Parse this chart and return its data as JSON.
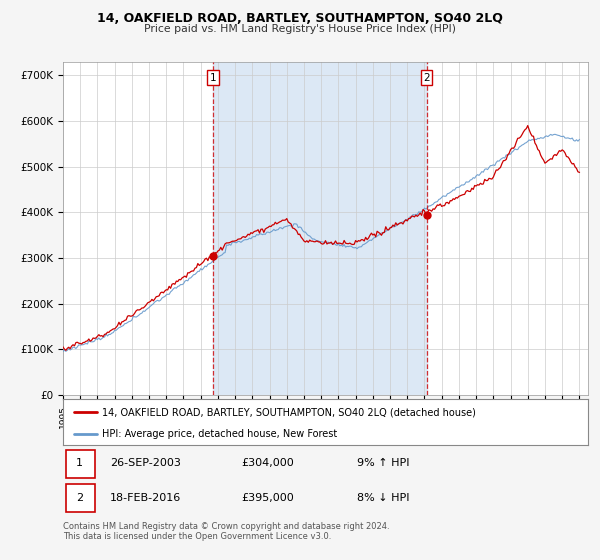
{
  "title": "14, OAKFIELD ROAD, BARTLEY, SOUTHAMPTON, SO40 2LQ",
  "subtitle": "Price paid vs. HM Land Registry's House Price Index (HPI)",
  "ylabel_ticks": [
    "£0",
    "£100K",
    "£200K",
    "£300K",
    "£400K",
    "£500K",
    "£600K",
    "£700K"
  ],
  "ytick_values": [
    0,
    100000,
    200000,
    300000,
    400000,
    500000,
    600000,
    700000
  ],
  "ylim": [
    0,
    730000
  ],
  "xlim_start": 1995.0,
  "xlim_end": 2025.5,
  "red_line_label": "14, OAKFIELD ROAD, BARTLEY, SOUTHAMPTON, SO40 2LQ (detached house)",
  "blue_line_label": "HPI: Average price, detached house, New Forest",
  "sale1_date": 2003.73,
  "sale1_price": 304000,
  "sale2_date": 2016.12,
  "sale2_price": 395000,
  "footer": "Contains HM Land Registry data © Crown copyright and database right 2024.\nThis data is licensed under the Open Government Licence v3.0.",
  "red_color": "#cc0000",
  "blue_color": "#6699cc",
  "dashed_vline_color": "#cc0000",
  "highlight_color": "#dce8f5",
  "background_color": "#ffffff",
  "grid_color": "#cccccc"
}
